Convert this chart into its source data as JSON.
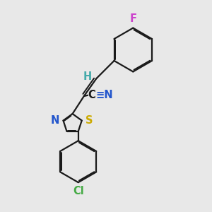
{
  "bg_color": "#e8e8e8",
  "bond_color": "#1a1a1a",
  "bond_width": 1.6,
  "dbo": 0.055,
  "atom_colors": {
    "F": "#cc44cc",
    "Cl": "#44aa44",
    "N": "#2255cc",
    "S": "#ccaa00",
    "H": "#44aaaa",
    "CN_text": "#2255cc"
  },
  "fs": 10.5
}
